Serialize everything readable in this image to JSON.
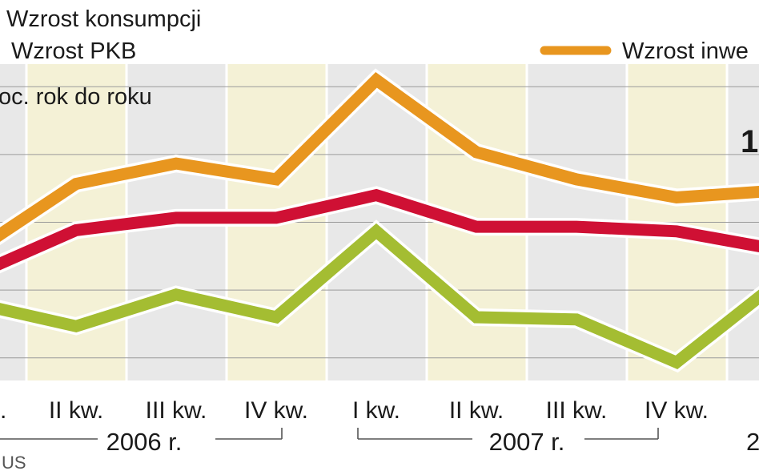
{
  "chart_data": {
    "type": "line",
    "unit_label": "oc. rok do roku",
    "categories": [
      "",
      "II kw.",
      "III kw.",
      "IV kw.",
      "I kw.",
      "II kw.",
      "III kw.",
      "IV kw.",
      ""
    ],
    "year_labels": [
      "2006 r.",
      "2007 r.",
      "2"
    ],
    "first_tick_partial": ".",
    "source": "US",
    "value_label_partial": "1",
    "series": [
      {
        "name": "Wzrost inwe",
        "color": "#e8961f",
        "values": [
          9.5,
          15.4,
          17.2,
          15.8,
          24.6,
          18.2,
          15.8,
          14.2,
          14.8
        ]
      },
      {
        "name": "Wzrost PKB",
        "color": "#cf1034",
        "values": [
          7.4,
          11.3,
          12.4,
          12.4,
          14.4,
          11.6,
          11.6,
          11.2,
          9.6
        ]
      },
      {
        "name": "Wzrost konsumpcji",
        "color": "#a4bd32",
        "values": [
          4.8,
          2.8,
          5.6,
          3.6,
          11.2,
          3.6,
          3.4,
          -0.4,
          6.6
        ]
      }
    ],
    "ylim": [
      -2,
      26
    ],
    "grid": true,
    "legend_position": "top"
  }
}
